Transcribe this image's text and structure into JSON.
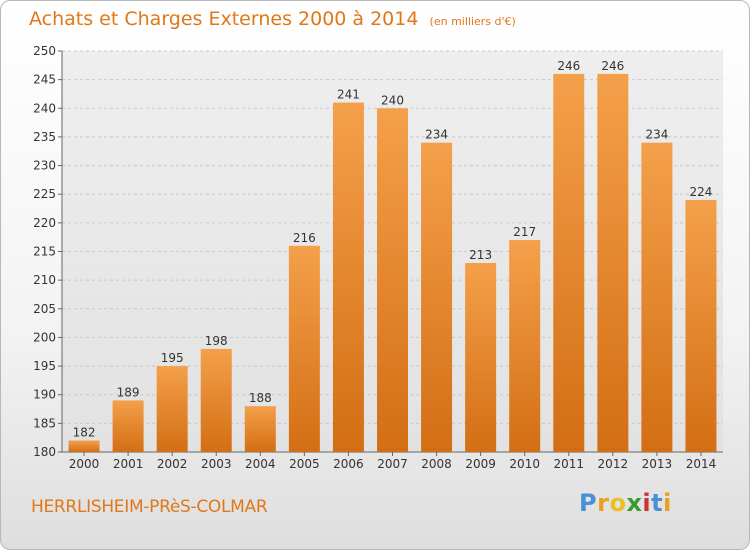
{
  "header": {
    "title": "Achats et Charges Externes 2000 à 2014",
    "unit": "(en milliers d'€)"
  },
  "commune": "HERRLISHEIM-PRèS-COLMAR",
  "brand": {
    "text": "Proxiti",
    "letters": [
      {
        "char": "P",
        "color": "#4a90d9"
      },
      {
        "char": "r",
        "color": "#e8a020"
      },
      {
        "char": "o",
        "color": "#e8c020"
      },
      {
        "char": "x",
        "color": "#3a9a30"
      },
      {
        "char": "i",
        "color": "#d03030"
      },
      {
        "char": "t",
        "color": "#4a90d9"
      },
      {
        "char": "i",
        "color": "#e8a020"
      }
    ]
  },
  "colors": {
    "accent": "#e07818",
    "bar_top": "#f4a04a",
    "bar_bottom": "#d36e14"
  },
  "chart_data": {
    "type": "bar",
    "categories": [
      "2000",
      "2001",
      "2002",
      "2003",
      "2004",
      "2005",
      "2006",
      "2007",
      "2008",
      "2009",
      "2010",
      "2011",
      "2012",
      "2013",
      "2014"
    ],
    "values": [
      182,
      189,
      195,
      198,
      188,
      216,
      241,
      240,
      234,
      213,
      217,
      246,
      246,
      234,
      224
    ],
    "ylim": [
      180,
      250
    ],
    "yticks": [
      180,
      185,
      190,
      195,
      200,
      205,
      210,
      215,
      220,
      225,
      230,
      235,
      240,
      245,
      250
    ],
    "grid": "horizontal-dashed",
    "data_labels": true
  }
}
